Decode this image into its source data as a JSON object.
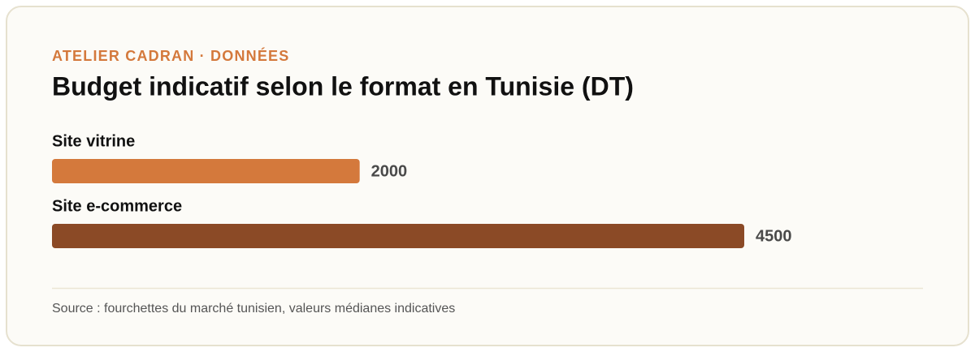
{
  "chart_data": {
    "type": "bar",
    "orientation": "horizontal",
    "subtitle": "ATELIER CADRAN · DONNÉES",
    "title": "Budget indicatif selon le format en Tunisie (DT)",
    "categories": [
      "Site vitrine",
      "Site e-commerce"
    ],
    "values": [
      2000,
      4500
    ],
    "colors": [
      "#d4793c",
      "#8b4a26"
    ],
    "source": "Source : fourchettes du marché tunisien, valeurs médianes indicatives"
  }
}
